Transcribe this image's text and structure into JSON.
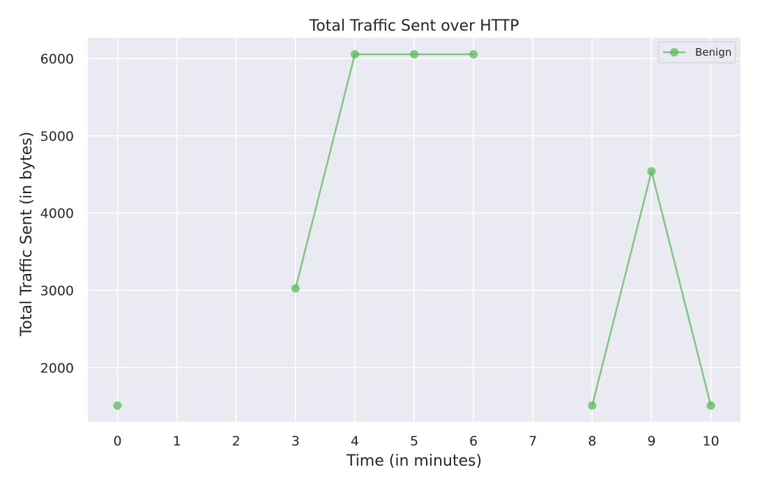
{
  "chart_data": {
    "type": "line",
    "title": "Total Traffic Sent over HTTP",
    "xlabel": "Time (in minutes)",
    "ylabel": "Total Traffic Sent (in bytes)",
    "xlim": [
      -0.5,
      10.5
    ],
    "ylim": [
      1300,
      6270
    ],
    "xticks": [
      0,
      1,
      2,
      3,
      4,
      5,
      6,
      7,
      8,
      9,
      10
    ],
    "xtick_labels": [
      "0",
      "1",
      "2",
      "3",
      "4",
      "5",
      "6",
      "7",
      "8",
      "9",
      "10"
    ],
    "yticks": [
      2000,
      3000,
      4000,
      5000,
      6000
    ],
    "ytick_labels": [
      "2000",
      "3000",
      "4000",
      "5000",
      "6000"
    ],
    "grid": true,
    "legend_position": "top-right",
    "series": [
      {
        "name": "Benign",
        "color": "#5cb85c",
        "points": [
          {
            "x": 0,
            "y": 1510
          },
          {
            "x": 3,
            "y": 3025
          },
          {
            "x": 4,
            "y": 6055
          },
          {
            "x": 5,
            "y": 6055
          },
          {
            "x": 6,
            "y": 6055
          },
          {
            "x": 8,
            "y": 1510
          },
          {
            "x": 9,
            "y": 4540
          },
          {
            "x": 10,
            "y": 1510
          }
        ],
        "segments": [
          [
            0
          ],
          [
            3,
            4,
            5,
            6
          ],
          [
            8,
            9,
            10
          ]
        ]
      }
    ]
  },
  "style": {
    "plot_background": "#eaeaf2",
    "grid_color": "#ffffff"
  }
}
